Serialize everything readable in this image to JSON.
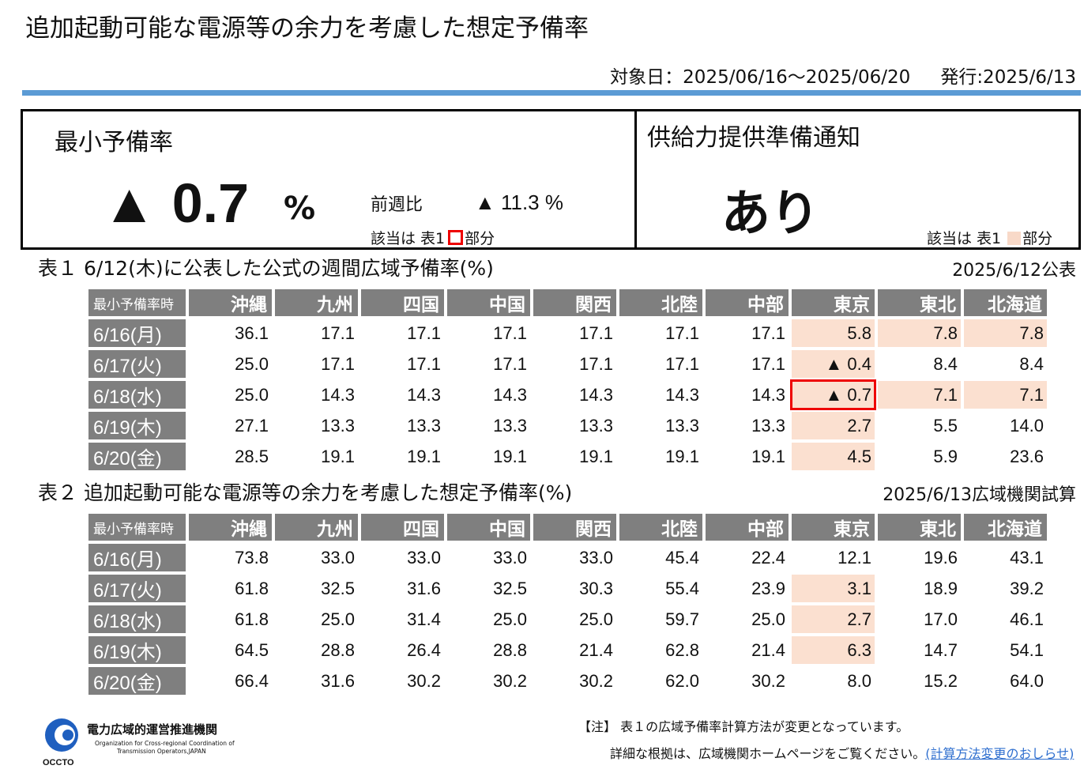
{
  "header": {
    "title": "追加起動可能な電源等の余力を考慮した想定予備率",
    "target_date": "対象日：2025/06/16〜2025/06/20",
    "issue_date": "発行:2025/6/13"
  },
  "summary": {
    "min_reserve_label": "最小予備率",
    "min_reserve_value": "▲ 0.7",
    "min_reserve_unit": "%",
    "wow_label": "前週比",
    "wow_value": "▲ 11.3 %",
    "legend1_pre": "該当は 表1",
    "legend1_post": "部分",
    "notice_label": "供給力提供準備通知",
    "notice_value": "あり",
    "legend2_pre": "該当は 表1",
    "legend2_post": "部分"
  },
  "colors": {
    "accent_bar": "#5b9bd5",
    "header_gray": "#7f7f7f",
    "highlight": "#fbe0d0",
    "red": "#ee0000"
  },
  "table1": {
    "caption": "表１ 6/12(木)に公表した公式の週間広域予備率(%)",
    "published": "2025/6/12公表",
    "corner": "最小予備率時",
    "columns": [
      "沖縄",
      "九州",
      "四国",
      "中国",
      "関西",
      "北陸",
      "中部",
      "東京",
      "東北",
      "北海道"
    ],
    "rows": [
      {
        "label": "6/16(月)",
        "values": [
          "36.1",
          "17.1",
          "17.1",
          "17.1",
          "17.1",
          "17.1",
          "17.1",
          "5.8",
          "7.8",
          "7.8"
        ]
      },
      {
        "label": "6/17(火)",
        "values": [
          "25.0",
          "17.1",
          "17.1",
          "17.1",
          "17.1",
          "17.1",
          "17.1",
          "▲ 0.4",
          "8.4",
          "8.4"
        ]
      },
      {
        "label": "6/18(水)",
        "values": [
          "25.0",
          "14.3",
          "14.3",
          "14.3",
          "14.3",
          "14.3",
          "14.3",
          "▲ 0.7",
          "7.1",
          "7.1"
        ]
      },
      {
        "label": "6/19(木)",
        "values": [
          "27.1",
          "13.3",
          "13.3",
          "13.3",
          "13.3",
          "13.3",
          "13.3",
          "2.7",
          "5.5",
          "14.0"
        ]
      },
      {
        "label": "6/20(金)",
        "values": [
          "28.5",
          "19.1",
          "19.1",
          "19.1",
          "19.1",
          "19.1",
          "19.1",
          "4.5",
          "5.9",
          "23.6"
        ]
      }
    ],
    "highlights": [
      [
        0,
        7
      ],
      [
        0,
        8
      ],
      [
        0,
        9
      ],
      [
        1,
        7
      ],
      [
        2,
        7
      ],
      [
        2,
        8
      ],
      [
        2,
        9
      ],
      [
        3,
        7
      ],
      [
        4,
        7
      ]
    ],
    "red": [
      [
        2,
        7
      ]
    ]
  },
  "table2": {
    "caption": "表２ 追加起動可能な電源等の余力を考慮した想定予備率(%)",
    "published": "2025/6/13広域機関試算",
    "corner": "最小予備率時",
    "columns": [
      "沖縄",
      "九州",
      "四国",
      "中国",
      "関西",
      "北陸",
      "中部",
      "東京",
      "東北",
      "北海道"
    ],
    "rows": [
      {
        "label": "6/16(月)",
        "values": [
          "73.8",
          "33.0",
          "33.0",
          "33.0",
          "33.0",
          "45.4",
          "22.4",
          "12.1",
          "19.6",
          "43.1"
        ]
      },
      {
        "label": "6/17(火)",
        "values": [
          "61.8",
          "32.5",
          "31.6",
          "32.5",
          "30.3",
          "55.4",
          "23.9",
          "3.1",
          "18.9",
          "39.2"
        ]
      },
      {
        "label": "6/18(水)",
        "values": [
          "61.8",
          "25.0",
          "31.4",
          "25.0",
          "25.0",
          "59.7",
          "25.0",
          "2.7",
          "17.0",
          "46.1"
        ]
      },
      {
        "label": "6/19(木)",
        "values": [
          "64.5",
          "28.8",
          "26.4",
          "28.8",
          "21.4",
          "62.8",
          "21.4",
          "6.3",
          "14.7",
          "54.1"
        ]
      },
      {
        "label": "6/20(金)",
        "values": [
          "66.4",
          "31.6",
          "30.2",
          "30.2",
          "30.2",
          "62.0",
          "30.2",
          "8.0",
          "15.2",
          "64.0"
        ]
      }
    ],
    "highlights": [
      [
        1,
        7
      ],
      [
        2,
        7
      ],
      [
        3,
        7
      ]
    ],
    "red": []
  },
  "footer": {
    "org_name": "電力広域的運営推進機関",
    "org_en_1": "Organization for Cross-regional Coordination of",
    "org_en_2": "Transmission Operators,JAPAN",
    "org_short": "OCCTO",
    "note1": "【注】 表１の広域予備率計算方法が変更となっています。",
    "note2": "詳細な根拠は、広域機関ホームページをご覧ください。",
    "link": "(計算方法変更のおしらせ)"
  }
}
